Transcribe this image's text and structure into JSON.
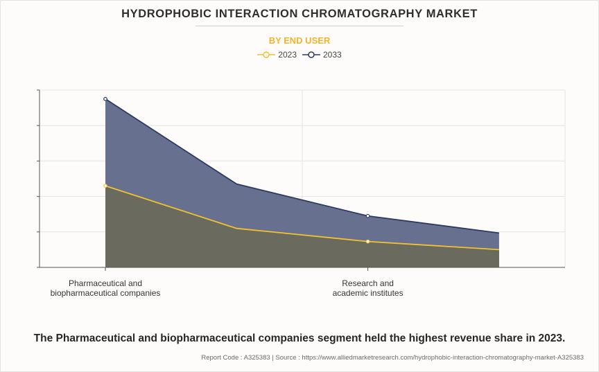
{
  "title": "HYDROPHOBIC INTERACTION CHROMATOGRAPHY MARKET",
  "subtitle": "BY END USER",
  "colors": {
    "series_2023": "#f2c230",
    "series_2033": "#2b3a63",
    "fill_2023": "#6a6a5e",
    "fill_2033": "#67718f",
    "grid": "#e4e4e4",
    "axis": "#555555"
  },
  "chart_data": {
    "type": "area",
    "title": "HYDROPHOBIC INTERACTION CHROMATOGRAPHY MARKET",
    "subtitle": "BY END USER",
    "categories": [
      "Pharmaceutical and biopharmaceutical companies",
      "",
      "Research and academic institutes",
      ""
    ],
    "xtick_labels": [
      {
        "index": 0,
        "lines": [
          "Pharmaceutical and",
          "biopharmaceutical companies"
        ]
      },
      {
        "index": 2,
        "lines": [
          "Research and",
          "academic institutes"
        ]
      }
    ],
    "series": [
      {
        "name": "2023",
        "values": [
          2.3,
          1.1,
          0.73,
          0.5
        ]
      },
      {
        "name": "2033",
        "values": [
          4.75,
          2.35,
          1.45,
          0.97
        ]
      }
    ],
    "ylim": [
      0,
      5
    ],
    "yticks": [
      0,
      1,
      2,
      3,
      4,
      5
    ],
    "ytick_labels_visible": false,
    "grid": true,
    "legend": "top-center",
    "xlabel": "",
    "ylabel": ""
  },
  "caption": "The Pharmaceutical and biopharmaceutical companies segment held the highest revenue share in 2023.",
  "footer": "Report Code : A325383  |  Source : https://www.alliedmarketresearch.com/hydrophobic-interaction-chromatography-market-A325383"
}
